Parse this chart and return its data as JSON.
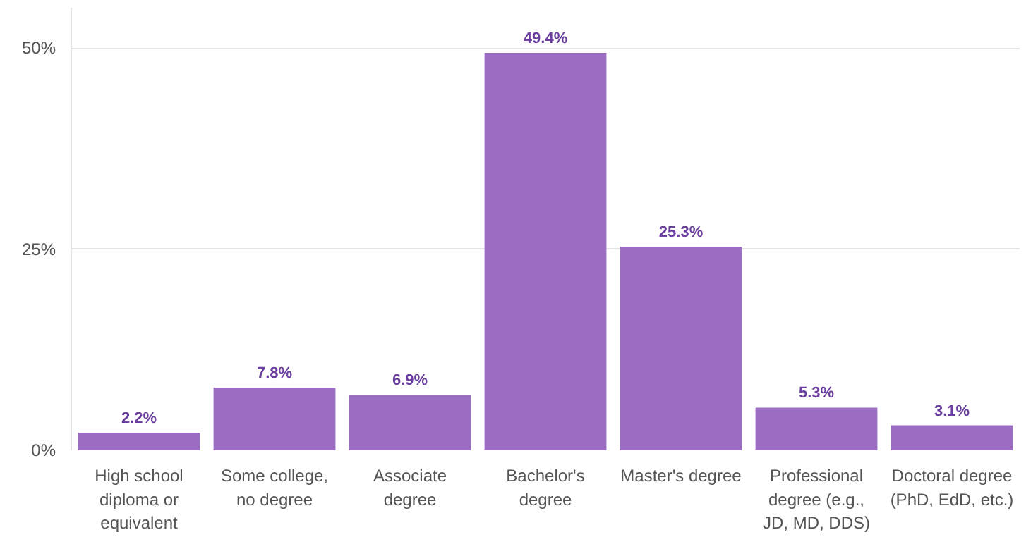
{
  "chart_data": {
    "type": "bar",
    "categories": [
      "High school\ndiploma or\nequivalent",
      "Some college,\nno degree",
      "Associate\ndegree",
      "Bachelor's\ndegree",
      "Master's degree",
      "Professional\ndegree (e.g.,\nJD, MD, DDS)",
      "Doctoral degree\n(PhD, EdD, etc.)"
    ],
    "values": [
      2.2,
      7.8,
      6.9,
      49.4,
      25.3,
      5.3,
      3.1
    ],
    "value_labels": [
      "2.2%",
      "7.8%",
      "6.9%",
      "49.4%",
      "25.3%",
      "5.3%",
      "3.1%"
    ],
    "color": "#9b6dc0",
    "ylim": [
      0,
      55
    ],
    "yticks": [
      {
        "value": 0,
        "label": "0%"
      },
      {
        "value": 25,
        "label": "25%"
      },
      {
        "value": 50,
        "label": "50%"
      }
    ],
    "grid": "y"
  }
}
